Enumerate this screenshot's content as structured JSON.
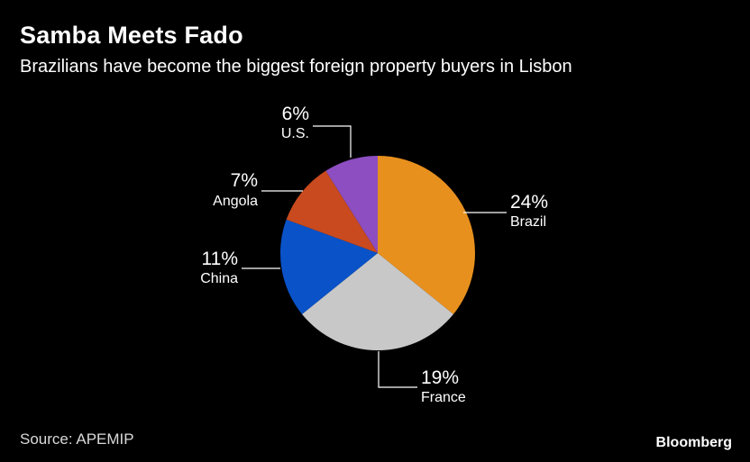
{
  "header": {
    "title": "Samba Meets Fado",
    "subtitle": "Brazilians have become the biggest foreign property buyers in Lisbon"
  },
  "footer": {
    "source": "Source: APEMIP",
    "brand": "Bloomberg"
  },
  "chart_data": {
    "type": "pie",
    "title": "Samba Meets Fado",
    "subtitle": "Brazilians have become the biggest foreign property buyers in Lisbon",
    "slices": [
      {
        "name": "Brazil",
        "value": 24,
        "label": "24%",
        "color": "#e8901e"
      },
      {
        "name": "France",
        "value": 19,
        "label": "19%",
        "color": "#c8c8c8"
      },
      {
        "name": "China",
        "value": 11,
        "label": "11%",
        "color": "#0a52c8"
      },
      {
        "name": "Angola",
        "value": 7,
        "label": "7%",
        "color": "#c84a1e"
      },
      {
        "name": "U.S.",
        "value": 6,
        "label": "6%",
        "color": "#8c4ec0"
      }
    ],
    "start": "12 o'clock",
    "direction": "clockwise",
    "legend": "none"
  }
}
